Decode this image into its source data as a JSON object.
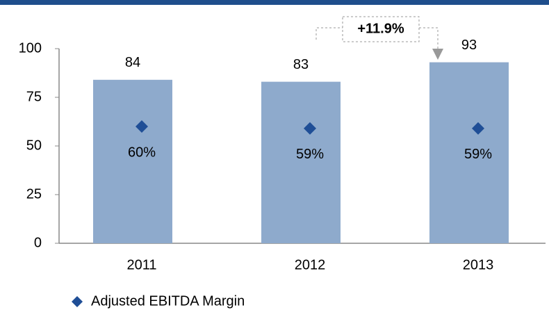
{
  "chart_data": {
    "type": "bar",
    "categories": [
      "2011",
      "2012",
      "2013"
    ],
    "series": [
      {
        "color": "#8eaacc",
        "values": [
          84,
          83,
          93
        ]
      },
      {
        "name": "Adjusted EBITDA Margin",
        "color": "#1f4e96",
        "marker": "diamond",
        "values": [
          60,
          59,
          59
        ],
        "value_labels": [
          "60%",
          "59%",
          "59%"
        ]
      }
    ],
    "annotation": "+11.9%",
    "ylim": [
      0,
      100
    ],
    "yticks": [
      0,
      25,
      50,
      75,
      100
    ],
    "grid": false
  }
}
